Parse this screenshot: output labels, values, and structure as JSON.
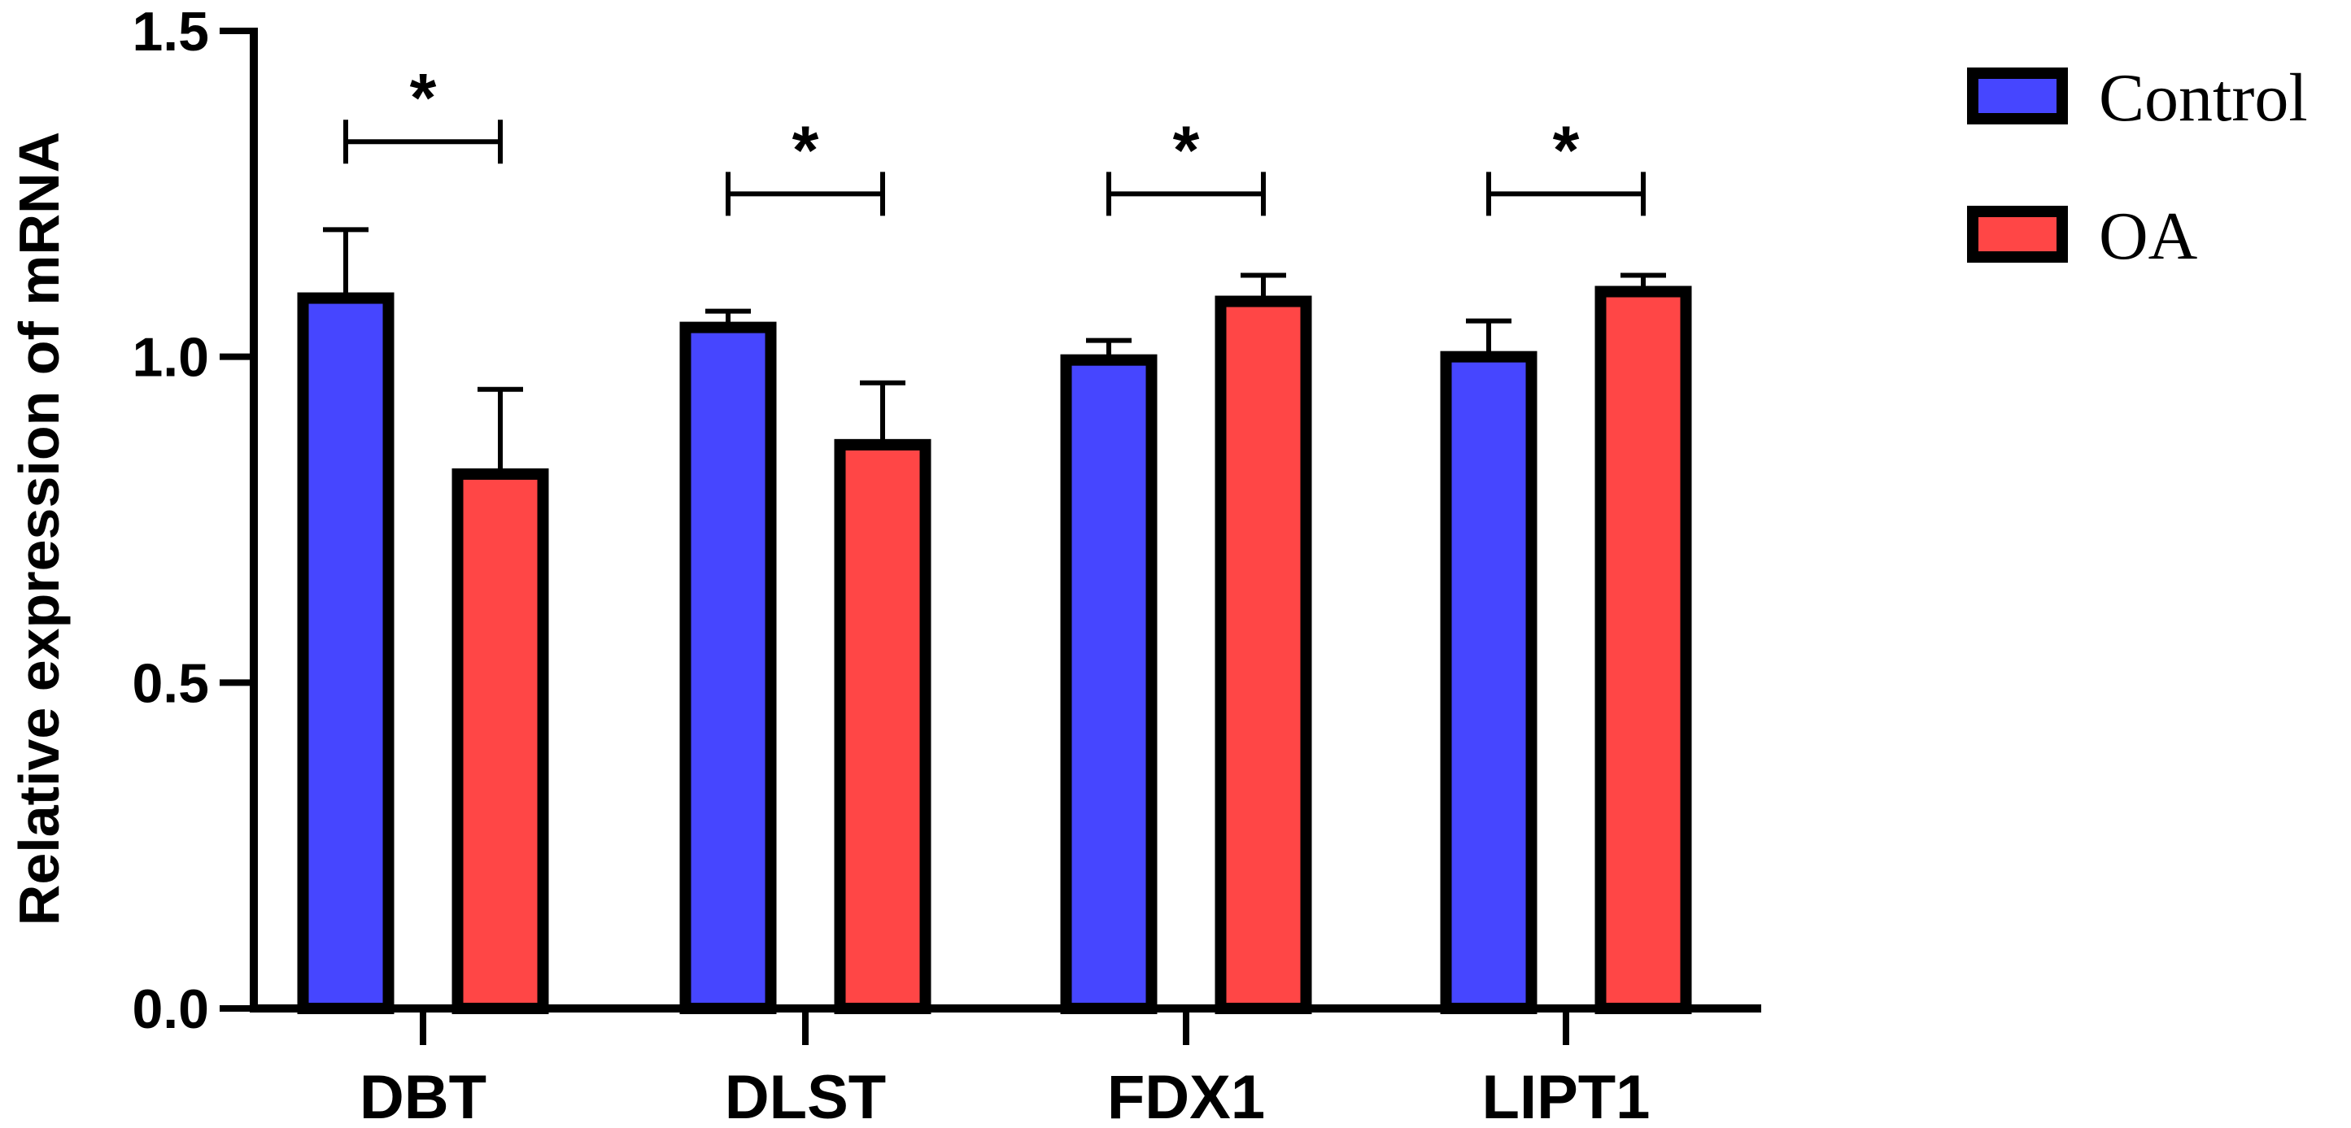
{
  "chart_data": {
    "type": "bar",
    "title": "",
    "xlabel": "",
    "ylabel": "Relative expression of  mRNA",
    "ylim": [
      0,
      1.5
    ],
    "y_ticks": [
      0.0,
      0.5,
      1.0,
      1.5
    ],
    "y_tick_labels": [
      "0.0",
      "0.5",
      "1.0",
      "1.5"
    ],
    "categories": [
      "DBT",
      "DLST",
      "FDX1",
      "LIPT1"
    ],
    "series": [
      {
        "name": "Control",
        "color": "#4646ff",
        "values": [
          1.09,
          1.045,
          0.995,
          1.0
        ],
        "errors": [
          0.105,
          0.025,
          0.03,
          0.055
        ]
      },
      {
        "name": "OA",
        "color": "#ff4646",
        "values": [
          0.82,
          0.865,
          1.085,
          1.1
        ],
        "errors": [
          0.13,
          0.095,
          0.04,
          0.025
        ]
      }
    ],
    "significance": [
      {
        "category": "DBT",
        "label": "*",
        "level": 1.33
      },
      {
        "category": "DLST",
        "label": "*",
        "level": 1.25
      },
      {
        "category": "FDX1",
        "label": "*",
        "level": 1.25
      },
      {
        "category": "LIPT1",
        "label": "*",
        "level": 1.25
      }
    ],
    "legend": {
      "position": "top-right"
    },
    "grid": false
  }
}
